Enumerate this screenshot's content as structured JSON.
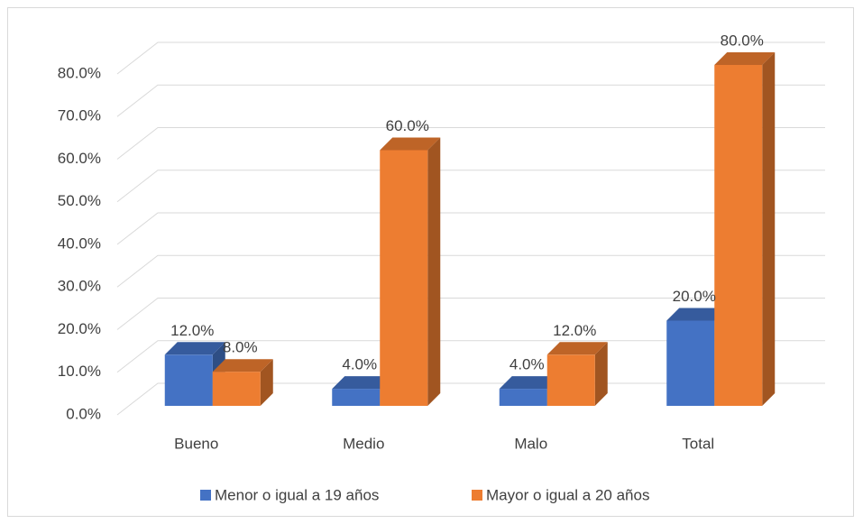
{
  "chart_data": {
    "type": "bar3d",
    "categories": [
      "Bueno",
      "Medio",
      "Malo",
      "Total"
    ],
    "series": [
      {
        "name": "Menor o igual a 19 años",
        "color": "#4472c4",
        "values": [
          12,
          4,
          4,
          20
        ],
        "value_labels": [
          "12.0%",
          "4.0%",
          "4.0%",
          "20.0%"
        ]
      },
      {
        "name": "Mayor o igual a 20 años",
        "color": "#ed7d31",
        "values": [
          8,
          60,
          12,
          80
        ],
        "value_labels": [
          "8.0%",
          "60.0%",
          "12.0%",
          "80.0%"
        ]
      }
    ],
    "ylim": [
      0,
      80
    ],
    "yticks": [
      {
        "value": 0,
        "label": "0.0%"
      },
      {
        "value": 10,
        "label": "10.0%"
      },
      {
        "value": 20,
        "label": "20.0%"
      },
      {
        "value": 30,
        "label": "30.0%"
      },
      {
        "value": 40,
        "label": "40.0%"
      },
      {
        "value": 50,
        "label": "50.0%"
      },
      {
        "value": 60,
        "label": "60.0%"
      },
      {
        "value": 70,
        "label": "70.0%"
      },
      {
        "value": 80,
        "label": "80.0%"
      }
    ],
    "grid": true,
    "legend": "bottom"
  }
}
